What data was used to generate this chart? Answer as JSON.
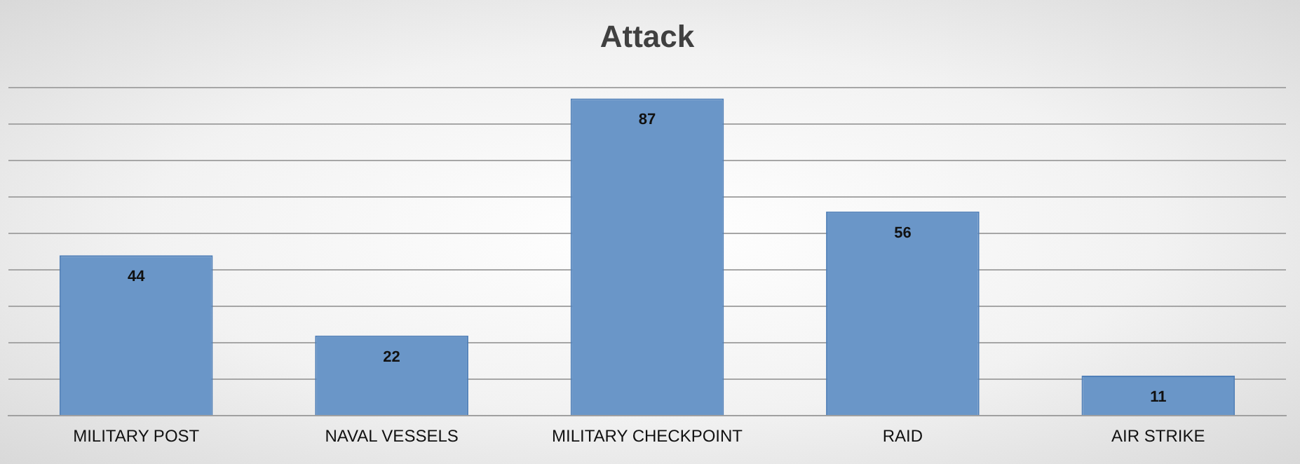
{
  "chart_data": {
    "type": "bar",
    "title": "Attack",
    "categories": [
      "MILITARY POST",
      "NAVAL VESSELS",
      "MILITARY CHECKPOINT",
      "RAID",
      "AIR STRIKE"
    ],
    "values": [
      44,
      22,
      87,
      56,
      11
    ],
    "color": "#6a96c8",
    "ylim": [
      0,
      90
    ],
    "yticks": [
      {
        "value": 0,
        "label": null
      },
      {
        "value": 10,
        "label": null
      },
      {
        "value": 20,
        "label": null
      },
      {
        "value": 30,
        "label": null
      },
      {
        "value": 40,
        "label": null
      },
      {
        "value": 50,
        "label": null
      },
      {
        "value": 60,
        "label": null
      },
      {
        "value": 70,
        "label": null
      },
      {
        "value": 80,
        "label": null
      },
      {
        "value": 90,
        "label": null
      }
    ],
    "grid": "y",
    "tick_labels": "x",
    "data_labels": true,
    "legend": false
  }
}
